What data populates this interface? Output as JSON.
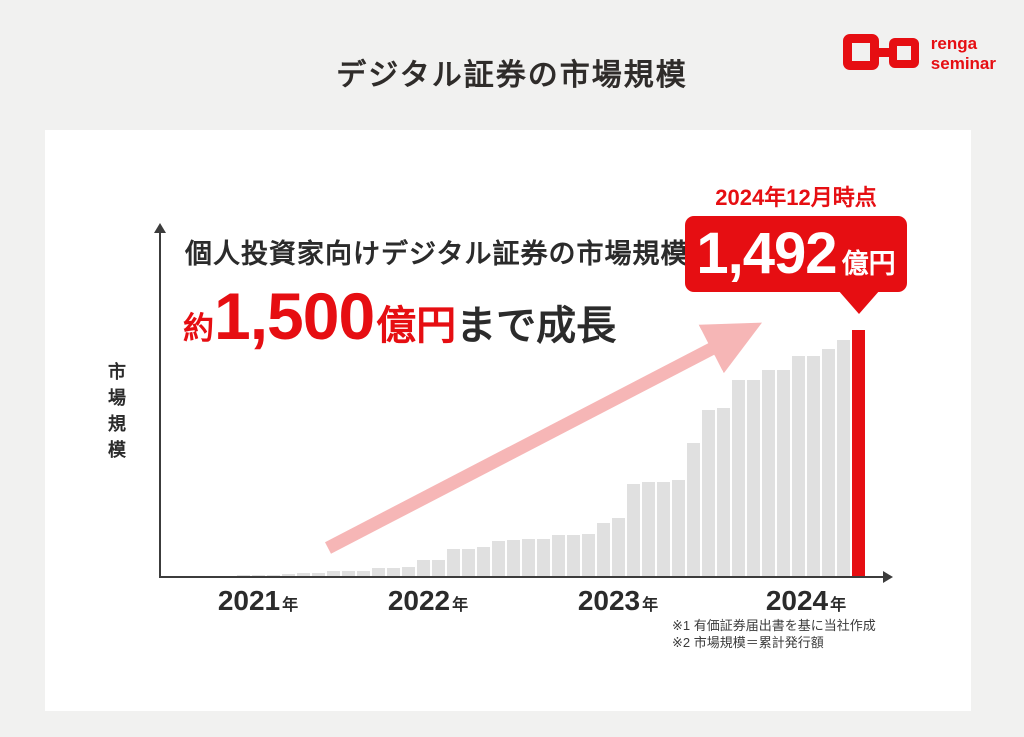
{
  "page": {
    "title": "デジタル証券の市場規模"
  },
  "logo": {
    "line1": "renga",
    "line2": "seminar"
  },
  "colors": {
    "red": "#e60e12",
    "pink_arrow": "#f6b6b6",
    "bar_gray": "#e0e0e0",
    "background": "#f1f1f0",
    "card": "#ffffff",
    "text_dark": "#2b2b2b",
    "axis": "#3c3c3c",
    "footnote": "#3b3b3b"
  },
  "chart_data": {
    "type": "bar",
    "title": "デジタル証券の市場規模",
    "ylabel": "市場規模",
    "xlabel": "",
    "unit": "億円",
    "gridlines": false,
    "ylim": [
      0,
      1500
    ],
    "x_tick_labels": [
      {
        "year": "2021",
        "suffix": "年"
      },
      {
        "year": "2022",
        "suffix": "年"
      },
      {
        "year": "2023",
        "suffix": "年"
      },
      {
        "year": "2024",
        "suffix": "年"
      }
    ],
    "values": [
      6,
      6,
      9,
      14,
      20,
      20,
      29,
      29,
      33,
      49,
      49,
      55,
      97,
      97,
      164,
      164,
      174,
      213,
      219,
      225,
      225,
      250,
      250,
      256,
      323,
      353,
      560,
      572,
      572,
      584,
      804,
      1010,
      1017,
      1187,
      1187,
      1248,
      1248,
      1333,
      1333,
      1376,
      1431,
      1492
    ],
    "highlight_last_bar": true,
    "annotation": {
      "line1": "個人投資家向けデジタル証券の市場規模は",
      "approx": "約",
      "big_number": "1,500",
      "big_unit": "億円",
      "tail": "まで成長"
    },
    "callout": {
      "date_label": "2024年12月時点",
      "value": "1,492",
      "unit": "億円"
    },
    "footnotes": [
      "※1 有価証券届出書を基に当社作成",
      "※2 市場規模＝累計発行額"
    ],
    "legend": null
  }
}
